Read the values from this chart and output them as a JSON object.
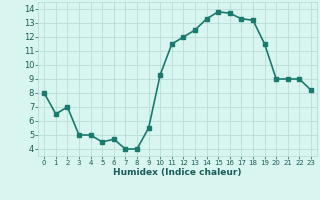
{
  "x": [
    0,
    1,
    2,
    3,
    4,
    5,
    6,
    7,
    8,
    9,
    10,
    11,
    12,
    13,
    14,
    15,
    16,
    17,
    18,
    19,
    20,
    21,
    22,
    23
  ],
  "y": [
    8.0,
    6.5,
    7.0,
    5.0,
    5.0,
    4.5,
    4.7,
    4.0,
    4.0,
    5.5,
    9.3,
    11.5,
    12.0,
    12.5,
    13.3,
    13.8,
    13.7,
    13.3,
    13.2,
    11.5,
    9.0,
    9.0,
    9.0,
    8.2
  ],
  "xlabel": "Humidex (Indice chaleur)",
  "xlim": [
    -0.5,
    23.5
  ],
  "ylim": [
    3.5,
    14.5
  ],
  "yticks": [
    4,
    5,
    6,
    7,
    8,
    9,
    10,
    11,
    12,
    13,
    14
  ],
  "xticks": [
    0,
    1,
    2,
    3,
    4,
    5,
    6,
    7,
    8,
    9,
    10,
    11,
    12,
    13,
    14,
    15,
    16,
    17,
    18,
    19,
    20,
    21,
    22,
    23
  ],
  "line_color": "#1a7a6e",
  "marker_color": "#1a7a6e",
  "bg_color": "#d8f5f0",
  "grid_color": "#b8ddd8",
  "axis_label_color": "#1a5c56",
  "tick_label_color": "#1a5c56",
  "line_width": 1.2,
  "marker_size": 2.5
}
